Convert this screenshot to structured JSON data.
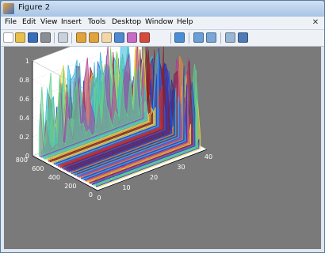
{
  "window": {
    "title": "Figure 2"
  },
  "menu": [
    "File",
    "Edit",
    "View",
    "Insert",
    "Tools",
    "Desktop",
    "Window",
    "Help"
  ],
  "toolbar": [
    {
      "name": "new-figure-icon",
      "color": "#ffffff"
    },
    {
      "name": "open-file-icon",
      "color": "#e9c04a"
    },
    {
      "name": "save-icon",
      "color": "#3a6db8"
    },
    {
      "name": "print-icon",
      "color": "#8a8f96"
    },
    {
      "name": "edit-plot-icon",
      "color": "#c9d2dc"
    },
    {
      "name": "zoom-in-icon",
      "color": "#e2a43a"
    },
    {
      "name": "zoom-out-icon",
      "color": "#e2a43a"
    },
    {
      "name": "pan-icon",
      "color": "#f2d7a8"
    },
    {
      "name": "rotate-3d-icon",
      "color": "#4d8ad0"
    },
    {
      "name": "data-cursor-icon",
      "color": "#c66cc4"
    },
    {
      "name": "brush-icon",
      "color": "#d64a3b"
    },
    {
      "name": "link-plot-icon",
      "color": "#4a8fd6"
    },
    {
      "name": "colorbar-icon",
      "color": "#6b9fd8"
    },
    {
      "name": "legend-icon",
      "color": "#7aa7d8"
    },
    {
      "name": "hide-plot-tools-icon",
      "color": "#9ab6d6"
    },
    {
      "name": "show-plot-tools-icon",
      "color": "#4e7bb5"
    }
  ],
  "chart_data": {
    "type": "3d-waterfall",
    "z_ticks": [
      "0",
      "0.2",
      "0.4",
      "0.6",
      "0.8",
      "1"
    ],
    "y_ticks": [
      "0",
      "200",
      "400",
      "600",
      "800"
    ],
    "x_ticks": [
      "0",
      "10",
      "20",
      "30",
      "40"
    ],
    "zlim": [
      0,
      1
    ],
    "ylim": [
      0,
      800
    ],
    "xlim": [
      0,
      40
    ],
    "palette": [
      "#1f3fd1",
      "#2f63e6",
      "#2db7e0",
      "#5fd08c",
      "#e8d64a",
      "#f08a2c",
      "#d2302a",
      "#8a1f2a",
      "#3a2c8c",
      "#b03c9c"
    ]
  }
}
